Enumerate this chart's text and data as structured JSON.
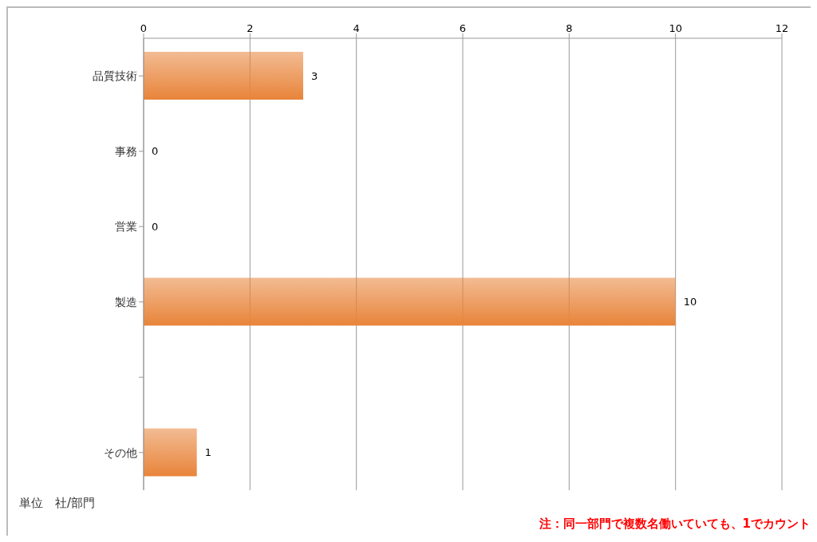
{
  "chart_data": {
    "type": "bar",
    "orientation": "horizontal",
    "categories": [
      "品質技術",
      "事務",
      "営業",
      "製造",
      null,
      "その他"
    ],
    "values": [
      3,
      0,
      0,
      10,
      null,
      1
    ],
    "color": "#e8843a",
    "xlim": [
      0,
      12
    ],
    "xticks": [
      0,
      2,
      4,
      6,
      8,
      10,
      12
    ],
    "grid": "x",
    "data_labels": true,
    "annotations": [
      "単位　社/部門",
      "注：同一部門で複数名働いていても、1でカウント"
    ]
  }
}
